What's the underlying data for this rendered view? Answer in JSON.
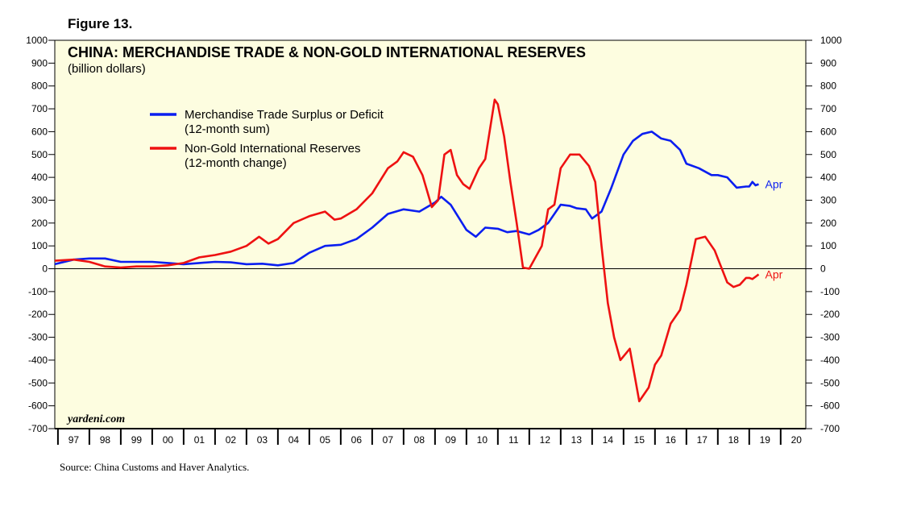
{
  "figure_label": "Figure 13.",
  "source": "Source: China Customs and Haver Analytics.",
  "watermark": "yardeni.com",
  "colors": {
    "plot_bg": "#fdfde0",
    "trade": "#0a1ef0",
    "reserves": "#ee1111"
  },
  "chart_data": {
    "type": "line",
    "title": "CHINA: MERCHANDISE TRADE & NON-GOLD INTERNATIONAL RESERVES",
    "subtitle": "(billion dollars)",
    "ylim": [
      -700,
      1000
    ],
    "xlim": [
      1996.9,
      2020.8
    ],
    "y_ticks": [
      -700,
      -600,
      -500,
      -400,
      -300,
      -200,
      -100,
      0,
      100,
      200,
      300,
      400,
      500,
      600,
      700,
      800,
      900,
      1000
    ],
    "x_tick_labels": [
      "97",
      "98",
      "99",
      "00",
      "01",
      "02",
      "03",
      "04",
      "05",
      "06",
      "07",
      "08",
      "09",
      "10",
      "11",
      "12",
      "13",
      "14",
      "15",
      "16",
      "17",
      "18",
      "19",
      "20"
    ],
    "end_label": "Apr",
    "series": [
      {
        "name": "Merchandise Trade Surplus or Deficit",
        "name_line2": "(12-month sum)",
        "color": "#0a1ef0",
        "x": [
          1996.9,
          1997.5,
          1998.0,
          1998.5,
          1999.0,
          1999.5,
          2000.0,
          2000.5,
          2001.0,
          2001.5,
          2002.0,
          2002.5,
          2003.0,
          2003.5,
          2004.0,
          2004.5,
          2005.0,
          2005.5,
          2006.0,
          2006.5,
          2007.0,
          2007.5,
          2008.0,
          2008.5,
          2009.0,
          2009.2,
          2009.5,
          2010.0,
          2010.3,
          2010.6,
          2011.0,
          2011.3,
          2011.6,
          2012.0,
          2012.3,
          2012.6,
          2013.0,
          2013.3,
          2013.5,
          2013.8,
          2014.0,
          2014.3,
          2014.6,
          2015.0,
          2015.3,
          2015.6,
          2015.9,
          2016.2,
          2016.5,
          2016.8,
          2017.0,
          2017.4,
          2017.8,
          2018.0,
          2018.3,
          2018.6,
          2018.9,
          2019.0,
          2019.1,
          2019.2,
          2019.3
        ],
        "values": [
          20,
          40,
          45,
          45,
          30,
          30,
          30,
          25,
          20,
          25,
          30,
          28,
          20,
          22,
          15,
          25,
          70,
          100,
          105,
          130,
          180,
          240,
          260,
          250,
          290,
          315,
          280,
          170,
          140,
          180,
          175,
          160,
          165,
          150,
          170,
          200,
          280,
          275,
          265,
          260,
          220,
          250,
          350,
          500,
          560,
          590,
          600,
          570,
          560,
          520,
          460,
          440,
          410,
          410,
          400,
          355,
          360,
          360,
          380,
          365,
          370
        ]
      },
      {
        "name": "Non-Gold International Reserves",
        "name_line2": "(12-month change)",
        "color": "#ee1111",
        "x": [
          1996.9,
          1997.5,
          1998.0,
          1998.5,
          1999.0,
          1999.5,
          2000.0,
          2000.5,
          2001.0,
          2001.5,
          2002.0,
          2002.5,
          2003.0,
          2003.4,
          2003.7,
          2004.0,
          2004.5,
          2005.0,
          2005.5,
          2005.8,
          2006.0,
          2006.5,
          2007.0,
          2007.5,
          2007.8,
          2008.0,
          2008.3,
          2008.6,
          2008.9,
          2009.1,
          2009.3,
          2009.5,
          2009.7,
          2009.9,
          2010.1,
          2010.4,
          2010.6,
          2010.9,
          2011.0,
          2011.2,
          2011.4,
          2011.6,
          2011.8,
          2012.0,
          2012.2,
          2012.4,
          2012.6,
          2012.8,
          2013.0,
          2013.3,
          2013.6,
          2013.9,
          2014.1,
          2014.3,
          2014.5,
          2014.7,
          2014.9,
          2015.2,
          2015.5,
          2015.8,
          2016.0,
          2016.2,
          2016.5,
          2016.8,
          2017.0,
          2017.3,
          2017.6,
          2017.9,
          2018.1,
          2018.3,
          2018.5,
          2018.7,
          2018.9,
          2019.0,
          2019.1,
          2019.2,
          2019.3
        ],
        "values": [
          35,
          40,
          30,
          10,
          5,
          10,
          10,
          15,
          25,
          50,
          60,
          75,
          100,
          140,
          110,
          130,
          200,
          230,
          250,
          215,
          220,
          260,
          330,
          440,
          470,
          510,
          490,
          410,
          270,
          300,
          500,
          520,
          410,
          370,
          350,
          440,
          480,
          740,
          720,
          580,
          380,
          200,
          5,
          0,
          50,
          100,
          260,
          280,
          440,
          500,
          500,
          450,
          380,
          100,
          -150,
          -300,
          -400,
          -350,
          -580,
          -520,
          -420,
          -380,
          -240,
          -180,
          -70,
          130,
          140,
          80,
          10,
          -60,
          -80,
          -70,
          -40,
          -40,
          -45,
          -35,
          -25
        ]
      }
    ]
  }
}
